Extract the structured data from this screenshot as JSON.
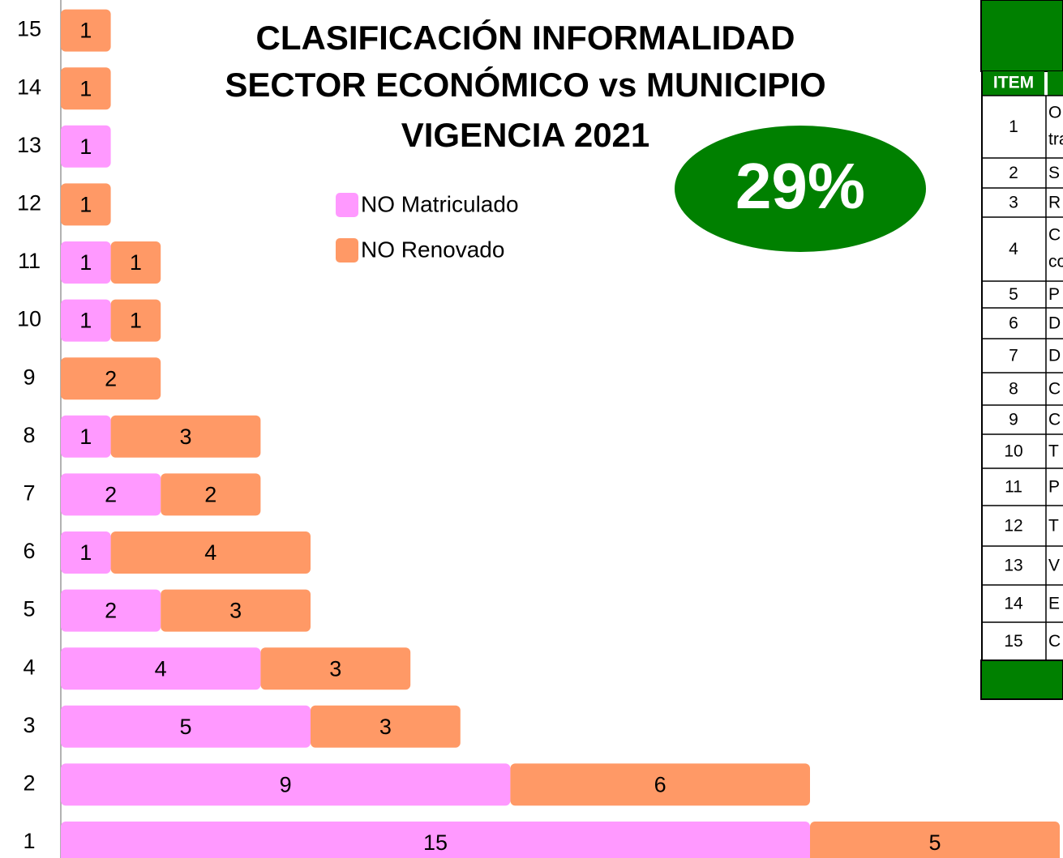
{
  "chart_data": {
    "type": "stacked_bar_horizontal",
    "title": [
      "CLASIFICACIÓN INFORMALIDAD",
      "SECTOR ECONÓMICO vs MUNICIPIO",
      "VIGENCIA 2021"
    ],
    "annotation": "29%",
    "categories": [
      1,
      2,
      3,
      4,
      5,
      6,
      7,
      8,
      9,
      10,
      11,
      12,
      13,
      14,
      15
    ],
    "series": [
      {
        "name": "NO Matriculado",
        "color": "#ff99ff",
        "values": [
          15,
          9,
          5,
          4,
          2,
          1,
          2,
          1,
          null,
          1,
          1,
          null,
          1,
          null,
          null
        ]
      },
      {
        "name": "NO Renovado",
        "color": "#ff9966",
        "values": [
          5,
          6,
          3,
          3,
          3,
          4,
          2,
          3,
          2,
          1,
          1,
          1,
          null,
          1,
          1
        ]
      }
    ],
    "xlim": [
      0,
      20
    ]
  },
  "table": {
    "header": "ITEM",
    "rows": [
      {
        "item": 1,
        "text": [
          "O",
          "tra"
        ]
      },
      {
        "item": 2,
        "text": [
          "S"
        ]
      },
      {
        "item": 3,
        "text": [
          "R"
        ]
      },
      {
        "item": 4,
        "text": [
          "C",
          "co"
        ]
      },
      {
        "item": 5,
        "text": [
          "P"
        ]
      },
      {
        "item": 6,
        "text": [
          "D"
        ]
      },
      {
        "item": 7,
        "text": [
          "D"
        ]
      },
      {
        "item": 8,
        "text": [
          "C"
        ]
      },
      {
        "item": 9,
        "text": [
          "C"
        ]
      },
      {
        "item": 10,
        "text": [
          "T"
        ]
      },
      {
        "item": 11,
        "text": [
          "P"
        ]
      },
      {
        "item": 12,
        "text": [
          "T"
        ]
      },
      {
        "item": 13,
        "text": [
          "V"
        ]
      },
      {
        "item": 14,
        "text": [
          "E"
        ]
      },
      {
        "item": 15,
        "text": [
          "C"
        ]
      }
    ]
  }
}
